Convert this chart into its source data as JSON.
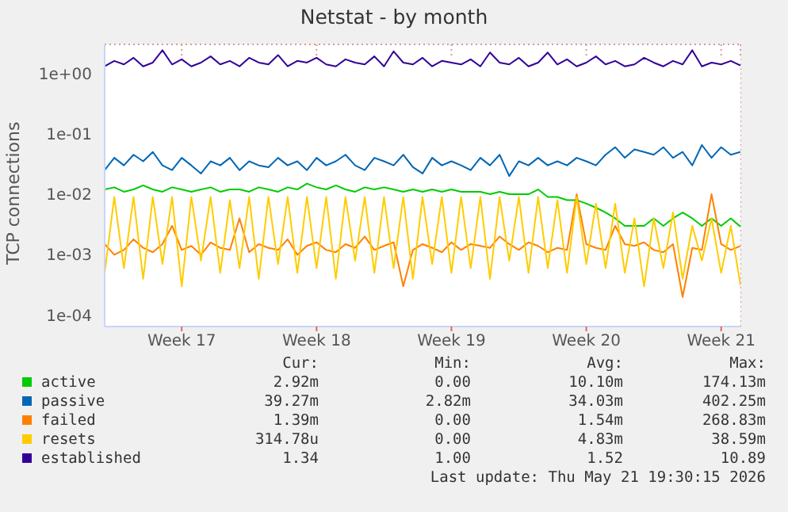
{
  "chart_data": {
    "type": "line",
    "title": "Netstat - by month",
    "ylabel": "TCP connections",
    "log": "y",
    "grid": true,
    "legend": "bottom",
    "marker": "none",
    "line_style": "solid",
    "categories": [
      null,
      null,
      null,
      null,
      null,
      null,
      null,
      null,
      "Week 17",
      null,
      null,
      null,
      null,
      null,
      null,
      null,
      null,
      null,
      null,
      null,
      null,
      null,
      "Week 18",
      null,
      null,
      null,
      null,
      null,
      null,
      null,
      null,
      null,
      null,
      null,
      null,
      null,
      "Week 19",
      null,
      null,
      null,
      null,
      null,
      null,
      null,
      null,
      null,
      null,
      null,
      null,
      null,
      "Week 20",
      null,
      null,
      null,
      null,
      null,
      null,
      null,
      null,
      null,
      null,
      null,
      null,
      null,
      "Week 21",
      null,
      null
    ],
    "ylim": [
      6.5e-05,
      3
    ],
    "yticks": [
      {
        "value": 0.0001,
        "label": "1e-04"
      },
      {
        "value": 0.001,
        "label": "1e-03"
      },
      {
        "value": 0.01,
        "label": "1e-02"
      },
      {
        "value": 0.1,
        "label": "1e-01"
      },
      {
        "value": 1,
        "label": "1e+00"
      }
    ],
    "series": [
      {
        "name": "active",
        "color": "#00cc00",
        "values": [
          0.012,
          0.013,
          0.011,
          0.012,
          0.014,
          0.012,
          0.011,
          0.013,
          0.012,
          0.011,
          0.012,
          0.013,
          0.011,
          0.012,
          0.012,
          0.011,
          0.013,
          0.012,
          0.011,
          0.013,
          0.012,
          0.015,
          0.013,
          0.012,
          0.014,
          0.012,
          0.011,
          0.013,
          0.012,
          0.013,
          0.012,
          0.011,
          0.012,
          0.011,
          0.012,
          0.011,
          0.012,
          0.011,
          0.011,
          0.011,
          0.01,
          0.011,
          0.01,
          0.01,
          0.01,
          0.012,
          0.009,
          0.009,
          0.008,
          0.008,
          0.007,
          0.006,
          0.005,
          0.004,
          0.003,
          0.003,
          0.003,
          0.004,
          0.003,
          0.004,
          0.005,
          0.004,
          0.003,
          0.004,
          0.003,
          0.004,
          0.00292
        ]
      },
      {
        "name": "passive",
        "color": "#0066b3",
        "values": [
          0.025,
          0.04,
          0.03,
          0.045,
          0.035,
          0.05,
          0.03,
          0.025,
          0.04,
          0.03,
          0.022,
          0.035,
          0.03,
          0.04,
          0.025,
          0.035,
          0.03,
          0.028,
          0.04,
          0.03,
          0.035,
          0.025,
          0.04,
          0.03,
          0.035,
          0.045,
          0.03,
          0.025,
          0.04,
          0.035,
          0.03,
          0.045,
          0.028,
          0.022,
          0.04,
          0.03,
          0.035,
          0.03,
          0.025,
          0.04,
          0.03,
          0.045,
          0.02,
          0.035,
          0.03,
          0.04,
          0.03,
          0.035,
          0.03,
          0.04,
          0.035,
          0.03,
          0.045,
          0.06,
          0.04,
          0.055,
          0.05,
          0.045,
          0.06,
          0.04,
          0.05,
          0.03,
          0.065,
          0.04,
          0.06,
          0.045,
          0.05
        ]
      },
      {
        "name": "failed",
        "color": "#ff8000",
        "values": [
          0.0015,
          0.001,
          0.0012,
          0.0018,
          0.0013,
          0.0011,
          0.0015,
          0.003,
          0.0012,
          0.0014,
          0.001,
          0.0016,
          0.0013,
          0.0012,
          0.004,
          0.0011,
          0.0015,
          0.0013,
          0.0012,
          0.0018,
          0.001,
          0.0014,
          0.0016,
          0.0012,
          0.0011,
          0.0015,
          0.0013,
          0.002,
          0.0012,
          0.0014,
          0.0016,
          0.0003,
          0.0012,
          0.0015,
          0.0013,
          0.0011,
          0.0016,
          0.0012,
          0.0015,
          0.0014,
          0.0013,
          0.002,
          0.0015,
          0.0012,
          0.0016,
          0.0014,
          0.0011,
          0.0013,
          0.0012,
          0.01,
          0.0015,
          0.0013,
          0.0012,
          0.003,
          0.0015,
          0.0014,
          0.0016,
          0.0012,
          0.0011,
          0.0015,
          0.0002,
          0.0013,
          0.0012,
          0.01,
          0.0015,
          0.0012,
          0.00139
        ]
      },
      {
        "name": "resets",
        "color": "#ffcc00",
        "values": [
          0.0005,
          0.009,
          0.0006,
          0.009,
          0.0004,
          0.009,
          0.0007,
          0.009,
          0.0003,
          0.009,
          0.0008,
          0.009,
          0.0005,
          0.008,
          0.0006,
          0.009,
          0.0004,
          0.009,
          0.0007,
          0.009,
          0.0005,
          0.009,
          0.0006,
          0.009,
          0.0004,
          0.009,
          0.0008,
          0.009,
          0.0005,
          0.009,
          0.0006,
          0.009,
          0.0004,
          0.009,
          0.0007,
          0.009,
          0.0005,
          0.009,
          0.0006,
          0.009,
          0.0004,
          0.009,
          0.0008,
          0.009,
          0.0005,
          0.009,
          0.0006,
          0.008,
          0.0005,
          0.009,
          0.0007,
          0.007,
          0.0006,
          0.007,
          0.0005,
          0.004,
          0.0003,
          0.004,
          0.0006,
          0.005,
          0.0004,
          0.003,
          0.0008,
          0.004,
          0.0005,
          0.003,
          0.00031478
        ]
      },
      {
        "name": "established",
        "color": "#330099",
        "values": [
          1.3,
          1.6,
          1.4,
          1.8,
          1.3,
          1.5,
          2.4,
          1.4,
          1.7,
          1.3,
          1.5,
          1.9,
          1.4,
          1.6,
          1.3,
          1.8,
          1.5,
          1.4,
          2,
          1.3,
          1.6,
          1.5,
          1.8,
          1.4,
          1.3,
          1.7,
          1.5,
          1.4,
          1.9,
          1.3,
          2.3,
          1.5,
          1.4,
          1.8,
          1.3,
          1.6,
          1.5,
          1.4,
          1.7,
          1.3,
          2.2,
          1.5,
          1.4,
          1.8,
          1.3,
          1.5,
          2.2,
          1.4,
          1.7,
          1.3,
          1.5,
          1.9,
          1.4,
          1.6,
          1.3,
          1.4,
          1.8,
          1.5,
          1.3,
          1.6,
          1.4,
          2.4,
          1.3,
          1.5,
          1.4,
          1.6,
          1.34
        ]
      }
    ],
    "annotations": [
      "Cur:",
      "Min:",
      "Avg:",
      "Max:",
      "2.92m",
      "0.00",
      "10.10m",
      "174.13m",
      "39.27m",
      "2.82m",
      "34.03m",
      "402.25m",
      "1.39m",
      "0.00",
      "1.54m",
      "268.83m",
      "314.78u",
      "0.00",
      "4.83m",
      "38.59m",
      "1.34",
      "1.00",
      "1.52",
      "10.89",
      "Last update: Thu May 21 19:30:15 2026"
    ]
  }
}
